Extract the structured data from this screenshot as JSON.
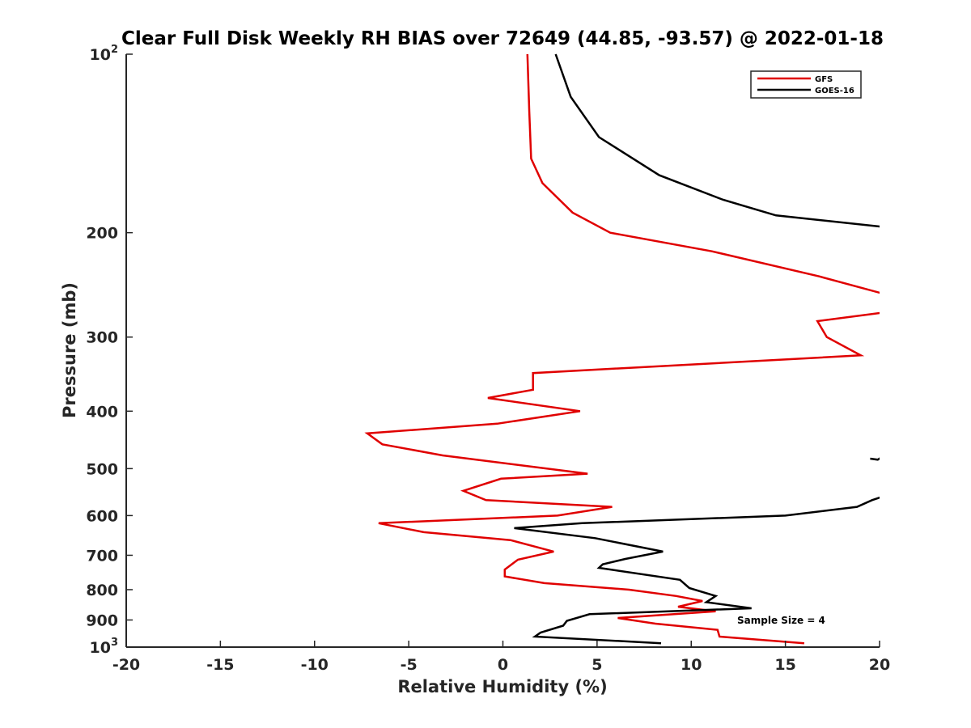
{
  "chart_data": {
    "type": "line",
    "title": "Clear Full Disk Weekly RH BIAS over 72649 (44.85, -93.57) @ 2022-01-18",
    "xlabel": "Relative Humidity (%)",
    "ylabel": "Pressure (mb)",
    "xlim": [
      -20,
      20
    ],
    "ylim": [
      100,
      1000
    ],
    "y_scale": "log",
    "y_reversed": true,
    "grid": false,
    "legend_position": "top-right",
    "x_ticks": [
      -20,
      -15,
      -10,
      -5,
      0,
      5,
      10,
      15,
      20
    ],
    "y_ticks": [
      {
        "value": 100,
        "base": "10",
        "exp": "2"
      },
      {
        "value": 200,
        "label": "200"
      },
      {
        "value": 300,
        "label": "300"
      },
      {
        "value": 400,
        "label": "400"
      },
      {
        "value": 500,
        "label": "500"
      },
      {
        "value": 600,
        "label": "600"
      },
      {
        "value": 700,
        "label": "700"
      },
      {
        "value": 800,
        "label": "800"
      },
      {
        "value": 900,
        "label": "900"
      },
      {
        "value": 1000,
        "base": "10",
        "exp": "3"
      }
    ],
    "annotation": "Sample Size = 4",
    "series": [
      {
        "name": "GFS",
        "color": "#e00000",
        "points": [
          [
            1.3,
            100
          ],
          [
            1.4,
            125
          ],
          [
            1.5,
            150
          ],
          [
            2.1,
            165
          ],
          [
            3.7,
            185
          ],
          [
            5.7,
            200
          ],
          [
            11.1,
            215
          ],
          [
            16.8,
            237
          ],
          [
            20.5,
            255
          ],
          null,
          [
            20.5,
            272
          ],
          [
            16.7,
            282
          ],
          [
            17.2,
            300
          ],
          [
            19.0,
            322
          ],
          [
            1.6,
            345
          ],
          [
            1.6,
            368
          ],
          [
            -0.8,
            380
          ],
          [
            4.1,
            400
          ],
          [
            -0.3,
            420
          ],
          [
            -7.2,
            436
          ],
          [
            -6.4,
            455
          ],
          [
            -3.2,
            475
          ],
          [
            4.5,
            510
          ],
          [
            -0.1,
            520
          ],
          [
            -2.1,
            545
          ],
          [
            -0.9,
            565
          ],
          [
            5.8,
            580
          ],
          [
            2.9,
            600
          ],
          [
            -6.6,
            618
          ],
          [
            -4.2,
            640
          ],
          [
            0.4,
            660
          ],
          [
            2.7,
            690
          ],
          [
            0.8,
            712
          ],
          [
            0.1,
            740
          ],
          [
            0.1,
            760
          ],
          [
            2.2,
            780
          ],
          [
            6.7,
            800
          ],
          [
            9.2,
            820
          ],
          [
            10.6,
            836
          ],
          [
            9.3,
            855
          ],
          [
            11.3,
            870
          ],
          [
            6.1,
            893
          ],
          [
            8.1,
            913
          ],
          [
            11.4,
            935
          ],
          [
            11.5,
            960
          ],
          [
            16.0,
            985
          ]
        ]
      },
      {
        "name": "GOES-16",
        "color": "#000000",
        "points": [
          [
            2.8,
            100
          ],
          [
            3.6,
            118
          ],
          [
            5.1,
            138
          ],
          [
            8.3,
            160
          ],
          [
            11.7,
            176
          ],
          [
            14.5,
            187
          ],
          [
            20.5,
            196
          ],
          null,
          [
            20.5,
            470
          ],
          [
            19.9,
            483
          ],
          [
            19.5,
            481
          ],
          null,
          [
            20.5,
            553
          ],
          [
            19.6,
            565
          ],
          [
            18.8,
            580
          ],
          [
            15.0,
            600
          ],
          [
            4.2,
            618
          ],
          [
            0.6,
            630
          ],
          [
            4.9,
            655
          ],
          [
            8.5,
            690
          ],
          [
            6.5,
            710
          ],
          [
            5.3,
            725
          ],
          [
            5.1,
            735
          ],
          [
            9.4,
            770
          ],
          [
            9.9,
            795
          ],
          [
            11.3,
            820
          ],
          [
            10.8,
            840
          ],
          [
            13.2,
            860
          ],
          [
            4.6,
            880
          ],
          [
            3.4,
            903
          ],
          [
            3.2,
            920
          ],
          [
            2.0,
            945
          ],
          [
            1.7,
            960
          ],
          [
            8.4,
            985
          ]
        ]
      }
    ]
  }
}
